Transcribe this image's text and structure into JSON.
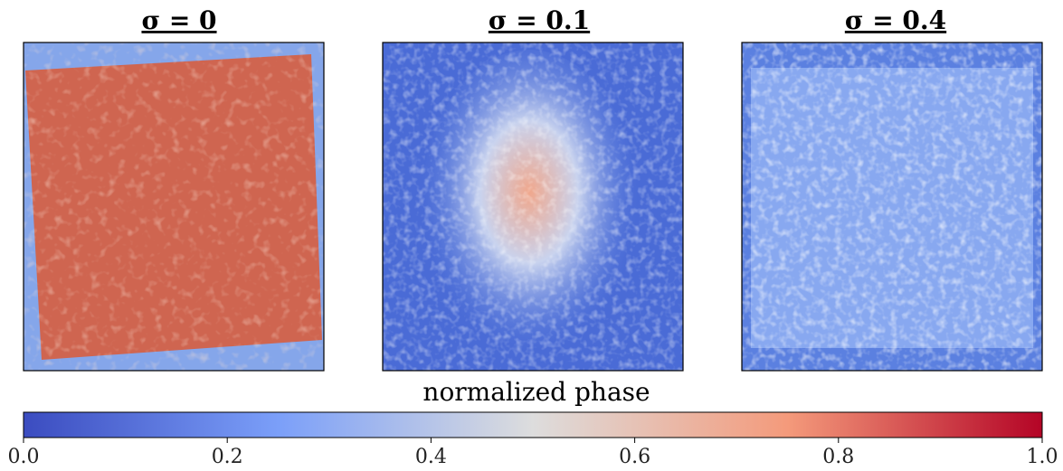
{
  "chart_data": {
    "type": "image-grid",
    "panels": [
      {
        "title": "σ = 0"
      },
      {
        "title": "σ = 0.1"
      },
      {
        "title": "σ = 0.4"
      }
    ],
    "colorbar": {
      "label": "normalized phase",
      "lim": [
        0,
        1
      ],
      "ticks": [
        {
          "value": 0,
          "label": "0.0"
        },
        0.2,
        0.4,
        0.6,
        0.8,
        {
          "value": 1,
          "label": "1.0"
        }
      ],
      "colors": [
        "#3b4cc0",
        "#7b9ff9",
        "#dddddd",
        "#f49a7b",
        "#b40426"
      ]
    }
  }
}
